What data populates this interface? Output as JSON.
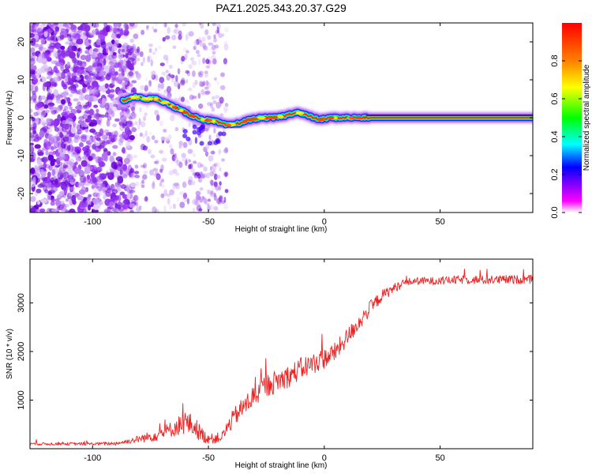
{
  "title": "PAZ1.2025.343.20.37.G29",
  "chart_data": [
    {
      "type": "heatmap",
      "xlabel": "Height of straight line (km)",
      "ylabel": "Frequency (Hz)",
      "xlim": [
        -127,
        90
      ],
      "ylim": [
        -25,
        25
      ],
      "xticks": [
        -100,
        -50,
        0,
        50
      ],
      "yticks": [
        -20,
        -10,
        0,
        10,
        20
      ],
      "tick_labels_x": [
        "-100",
        "-50",
        "0",
        "50"
      ],
      "tick_labels_y": [
        "-20",
        "-10",
        "0",
        "10",
        "20"
      ],
      "ridge": {
        "x": [
          -87,
          -82,
          -77,
          -72,
          -67,
          -62,
          -57,
          -52,
          -47,
          -42,
          -37,
          -32,
          -27,
          -22,
          -17,
          -12,
          -7,
          -2,
          3,
          8,
          13,
          18,
          30,
          50,
          70,
          90
        ],
        "freq": [
          4.5,
          5.5,
          5.0,
          5.0,
          3.5,
          2.0,
          0.5,
          -0.5,
          -1.0,
          -2.0,
          -1.5,
          -0.5,
          0.0,
          0.0,
          0.5,
          1.5,
          0.5,
          -0.5,
          0.0,
          0.0,
          0.0,
          0.0,
          0.0,
          0.0,
          0.0,
          0.0
        ]
      },
      "colorbar": {
        "label": "Normalized spectral amplitude",
        "range": [
          0,
          1
        ],
        "ticks": [
          "0.0",
          "0.2",
          "0.4",
          "0.6",
          "0.8"
        ],
        "colors": [
          "#ffffff",
          "#ff00ff",
          "#8000ff",
          "#0000ff",
          "#00ffff",
          "#00ff00",
          "#ffff00",
          "#ff8000",
          "#ff0000"
        ]
      }
    },
    {
      "type": "line",
      "xlabel": "Height of straight line (km)",
      "ylabel": "SNR (10 * v/v)",
      "xlim": [
        -127,
        90
      ],
      "ylim": [
        0,
        3900
      ],
      "xticks": [
        -100,
        -50,
        0,
        50
      ],
      "yticks": [
        1000,
        2000,
        3000
      ],
      "tick_labels_x": [
        "-100",
        "-50",
        "0",
        "50"
      ],
      "tick_labels_y": [
        "1000",
        "2000",
        "3000"
      ],
      "color": "#ee2222",
      "series": [
        {
          "name": "SNR",
          "x": [
            -127,
            -110,
            -100,
            -90,
            -85,
            -80,
            -75,
            -70,
            -65,
            -60,
            -56,
            -52,
            -48,
            -44,
            -41,
            -38,
            -34,
            -30,
            -25,
            -20,
            -15,
            -10,
            -5,
            0,
            5,
            10,
            15,
            20,
            25,
            30,
            35,
            40,
            50,
            60,
            70,
            80,
            90
          ],
          "y": [
            100,
            100,
            100,
            110,
            150,
            200,
            250,
            320,
            420,
            550,
            450,
            250,
            200,
            250,
            500,
            700,
            900,
            1100,
            1300,
            1400,
            1500,
            1650,
            1750,
            1850,
            2000,
            2300,
            2600,
            2900,
            3150,
            3300,
            3420,
            3450,
            3450,
            3480,
            3470,
            3480,
            3480
          ],
          "noise": [
            30,
            30,
            30,
            40,
            50,
            80,
            110,
            140,
            170,
            250,
            220,
            140,
            100,
            110,
            180,
            200,
            220,
            240,
            240,
            240,
            230,
            230,
            220,
            210,
            200,
            190,
            170,
            150,
            120,
            100,
            80,
            80,
            80,
            90,
            90,
            90,
            90
          ]
        }
      ]
    }
  ]
}
